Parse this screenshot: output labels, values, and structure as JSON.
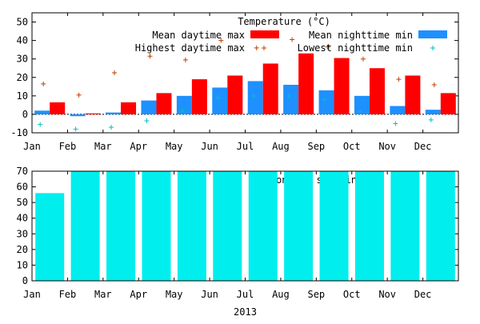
{
  "chart_data": [
    {
      "type": "bar",
      "title": "Temperature (°C)",
      "categories": [
        "Jan",
        "Feb",
        "Mar",
        "Apr",
        "May",
        "Jun",
        "Jul",
        "Aug",
        "Sep",
        "Oct",
        "Nov",
        "Dec"
      ],
      "ylim": [
        -10,
        55
      ],
      "yticks": [
        -10,
        0,
        10,
        20,
        30,
        40,
        50
      ],
      "grid": false,
      "legend_position": "top-right",
      "series": [
        {
          "name": "Mean daytime max",
          "kind": "bar",
          "color": "#ff0000",
          "values": [
            6.5,
            0.5,
            6.5,
            11.5,
            19,
            21,
            27.5,
            33,
            30.5,
            25,
            21,
            11.5
          ]
        },
        {
          "name": "Mean nighttime min",
          "kind": "bar",
          "color": "#1e90ff",
          "values": [
            2,
            -1,
            1,
            7.5,
            10,
            14.5,
            18,
            16,
            13,
            10,
            4.5,
            2.5
          ]
        },
        {
          "name": "Highest daytime max",
          "kind": "point",
          "marker": "+",
          "color": "#c04000",
          "values": [
            16.5,
            10.5,
            22.5,
            31.5,
            29.5,
            40,
            36,
            40.5,
            36.5,
            30,
            19,
            16
          ]
        },
        {
          "name": "Lowest nighttime min",
          "kind": "point",
          "marker": "+",
          "color": "#00c0c0",
          "values": [
            -5.5,
            -8,
            -7,
            -3.5,
            2,
            9,
            10,
            10,
            8,
            1.5,
            -5,
            -3
          ]
        }
      ]
    },
    {
      "type": "bar",
      "title": "Monthly sunshine (h)",
      "xlabel": "2013",
      "categories": [
        "Jan",
        "Feb",
        "Mar",
        "Apr",
        "May",
        "Jun",
        "Jul",
        "Aug",
        "Sep",
        "Oct",
        "Nov",
        "Dec"
      ],
      "ylim": [
        0,
        70
      ],
      "yticks": [
        0,
        10,
        20,
        30,
        40,
        50,
        60,
        70
      ],
      "grid": false,
      "series": [
        {
          "name": "",
          "kind": "bar",
          "color": "#00eeee",
          "values": [
            56,
            70,
            70,
            70,
            70,
            70,
            70,
            70,
            70,
            70,
            70,
            70
          ]
        }
      ]
    }
  ]
}
